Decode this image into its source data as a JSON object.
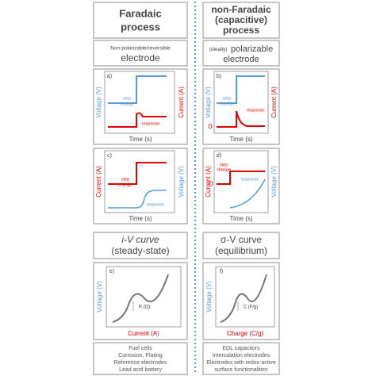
{
  "left": {
    "header": [
      "Faradaic",
      "process"
    ],
    "electrode": {
      "note": "Non-polarizable/reversible",
      "name": "electrode"
    },
    "panel_a": {
      "label": "a)",
      "y_left": "Voltage (V)",
      "y_right": "Current (A)",
      "x": "Time (s)",
      "step": [
        "step",
        "change"
      ],
      "response": "response"
    },
    "panel_c": {
      "label": "c)",
      "y_left": "Current (A)",
      "y_right": "Voltage (V)",
      "x": "Time (s)",
      "step": [
        "step",
        "change"
      ],
      "response": "response"
    },
    "curve_title": {
      "name": "i-V curve",
      "condition": "(steady-state)"
    },
    "panel_e": {
      "label": "e)",
      "y": "Voltage (V)",
      "x": "Current (A)",
      "slope": "R (Ω)"
    },
    "applications": [
      "Fuel cells",
      "Corrosion, Plating",
      "Reference electrodes",
      "Lead acid battery"
    ]
  },
  "right": {
    "header": [
      "non-Faradaic",
      "(capacitive)",
      "process"
    ],
    "electrode": {
      "note": "(ideally)",
      "name": [
        "polarizable",
        "electrode"
      ]
    },
    "panel_b": {
      "label": "b)",
      "y_left": "Voltage (V)",
      "y_right": "Current (A)",
      "x": "Time (s)",
      "step": [
        "step",
        "change"
      ],
      "response": "response",
      "zero": "0"
    },
    "panel_d": {
      "label": "d)",
      "y_left": "Current (A)",
      "y_right": "Voltage (V)",
      "x": "Time (s)",
      "step": [
        "step",
        "change"
      ],
      "response": "response",
      "zero": "0"
    },
    "curve_title": {
      "name": "σ-V curve",
      "condition": "(equilibrium)"
    },
    "panel_f": {
      "label": "f)",
      "y": "Voltage (V)",
      "x": "Charge (C/g)",
      "slope": "C (F/g)"
    },
    "applications": [
      "EDL capacitors",
      "Intercalation electrodes",
      "Electrodes with redox-active",
      "surface functionalities"
    ]
  }
}
